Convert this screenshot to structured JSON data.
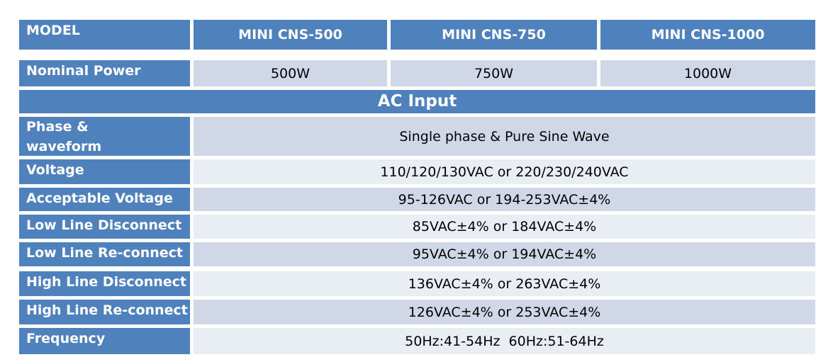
{
  "header": {
    "label": "MODEL",
    "models": [
      "MINI CNS-500",
      "MINI CNS-750",
      "MINI CNS-1000"
    ]
  },
  "nominal_power": {
    "label": "Nominal Power",
    "values": [
      "500W",
      "750W",
      "1000W"
    ]
  },
  "section": {
    "title": "AC Input"
  },
  "rows": [
    {
      "label": "Phase & waveform",
      "value": "Single phase & Pure Sine Wave"
    },
    {
      "label": "Voltage",
      "value": "110/120/130VAC or 220/230/240VAC"
    },
    {
      "label": "Acceptable Voltage",
      "value": "95-126VAC or 194-253VAC±4%"
    },
    {
      "label": "Low Line Disconnect",
      "value": "85VAC±4% or 184VAC±4%"
    },
    {
      "label": "Low Line Re-connect",
      "value": "95VAC±4% or 194VAC±4%"
    },
    {
      "label": "High Line Disconnect",
      "value": "136VAC±4% or 263VAC±4%"
    },
    {
      "label": "High Line Re-connect",
      "value": "126VAC±4% or 253VAC±4%"
    },
    {
      "label": "Frequency",
      "value": "50Hz:41-54Hz  60Hz:51-64Hz"
    }
  ]
}
